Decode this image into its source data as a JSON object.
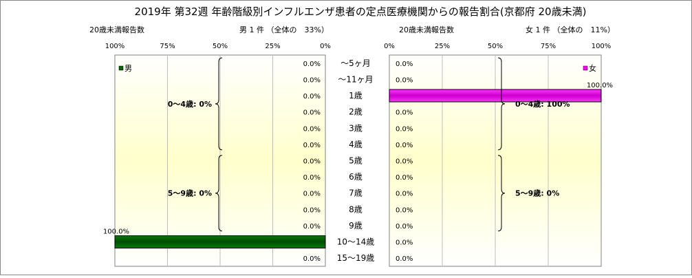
{
  "chart_data": [
    {
      "type": "bar",
      "title": "2019年 第32週 年齢階級別インフルエンザ患者の定点医療機関からの報告割合(京都府 20歳未満)",
      "panel_subtitle": "20歳未満報告数",
      "panel_header": "男 1 件 （全体の　33%）",
      "legend": "男",
      "color": "#006400",
      "orientation": "horizontal",
      "x_direction": "reversed",
      "xlim": [
        0,
        100
      ],
      "x_ticks": [
        "100%",
        "75%",
        "50%",
        "25%",
        "0%"
      ],
      "categories": [
        "～5ヶ月",
        "～11ヶ月",
        "1歳",
        "2歳",
        "3歳",
        "4歳",
        "5歳",
        "6歳",
        "7歳",
        "8歳",
        "9歳",
        "10～14歳",
        "15～19歳"
      ],
      "values": [
        0,
        0,
        0,
        0,
        0,
        0,
        0,
        0,
        0,
        0,
        0,
        100,
        0
      ],
      "value_labels": [
        "0.0%",
        "0.0%",
        "0.0%",
        "0.0%",
        "0.0%",
        "0.0%",
        "0.0%",
        "0.0%",
        "0.0%",
        "0.0%",
        "0.0%",
        "100.0%",
        "0.0%"
      ],
      "group_annotations": [
        "0～4歳: 0%",
        "5～9歳: 0%"
      ]
    },
    {
      "type": "bar",
      "panel_subtitle": "20歳未満報告数",
      "panel_header": "女 1 件 （全体の　11%）",
      "legend": "女",
      "color": "#ff00ff",
      "orientation": "horizontal",
      "xlim": [
        0,
        100
      ],
      "x_ticks": [
        "0%",
        "25%",
        "50%",
        "75%",
        "100%"
      ],
      "categories": [
        "～5ヶ月",
        "～11ヶ月",
        "1歳",
        "2歳",
        "3歳",
        "4歳",
        "5歳",
        "6歳",
        "7歳",
        "8歳",
        "9歳",
        "10～14歳",
        "15～19歳"
      ],
      "values": [
        0,
        0,
        100,
        0,
        0,
        0,
        0,
        0,
        0,
        0,
        0,
        0,
        0
      ],
      "value_labels": [
        "0.0%",
        "0.0%",
        "100.0%",
        "0.0%",
        "0.0%",
        "0.0%",
        "0.0%",
        "0.0%",
        "0.0%",
        "0.0%",
        "0.0%",
        "0.0%",
        "0.0%"
      ],
      "group_annotations": [
        "0～4歳: 100%",
        "5～9歳: 0%"
      ]
    }
  ]
}
